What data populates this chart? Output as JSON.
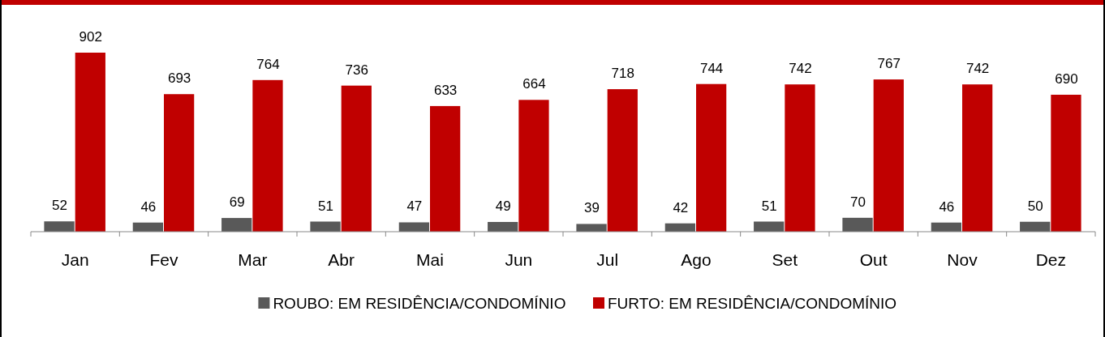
{
  "chart_data": {
    "type": "bar",
    "categories": [
      "Jan",
      "Fev",
      "Mar",
      "Abr",
      "Mai",
      "Jun",
      "Jul",
      "Ago",
      "Set",
      "Out",
      "Nov",
      "Dez"
    ],
    "series": [
      {
        "name": "ROUBO: EM RESIDÊNCIA/CONDOMÍNIO",
        "color": "#595959",
        "values": [
          52,
          46,
          69,
          51,
          47,
          49,
          39,
          42,
          51,
          70,
          46,
          50
        ]
      },
      {
        "name": "FURTO: EM RESIDÊNCIA/CONDOMÍNIO",
        "color": "#c00000",
        "values": [
          902,
          693,
          764,
          736,
          633,
          664,
          718,
          744,
          742,
          767,
          742,
          690
        ]
      }
    ],
    "data_labels": true,
    "legend": "bottom"
  }
}
